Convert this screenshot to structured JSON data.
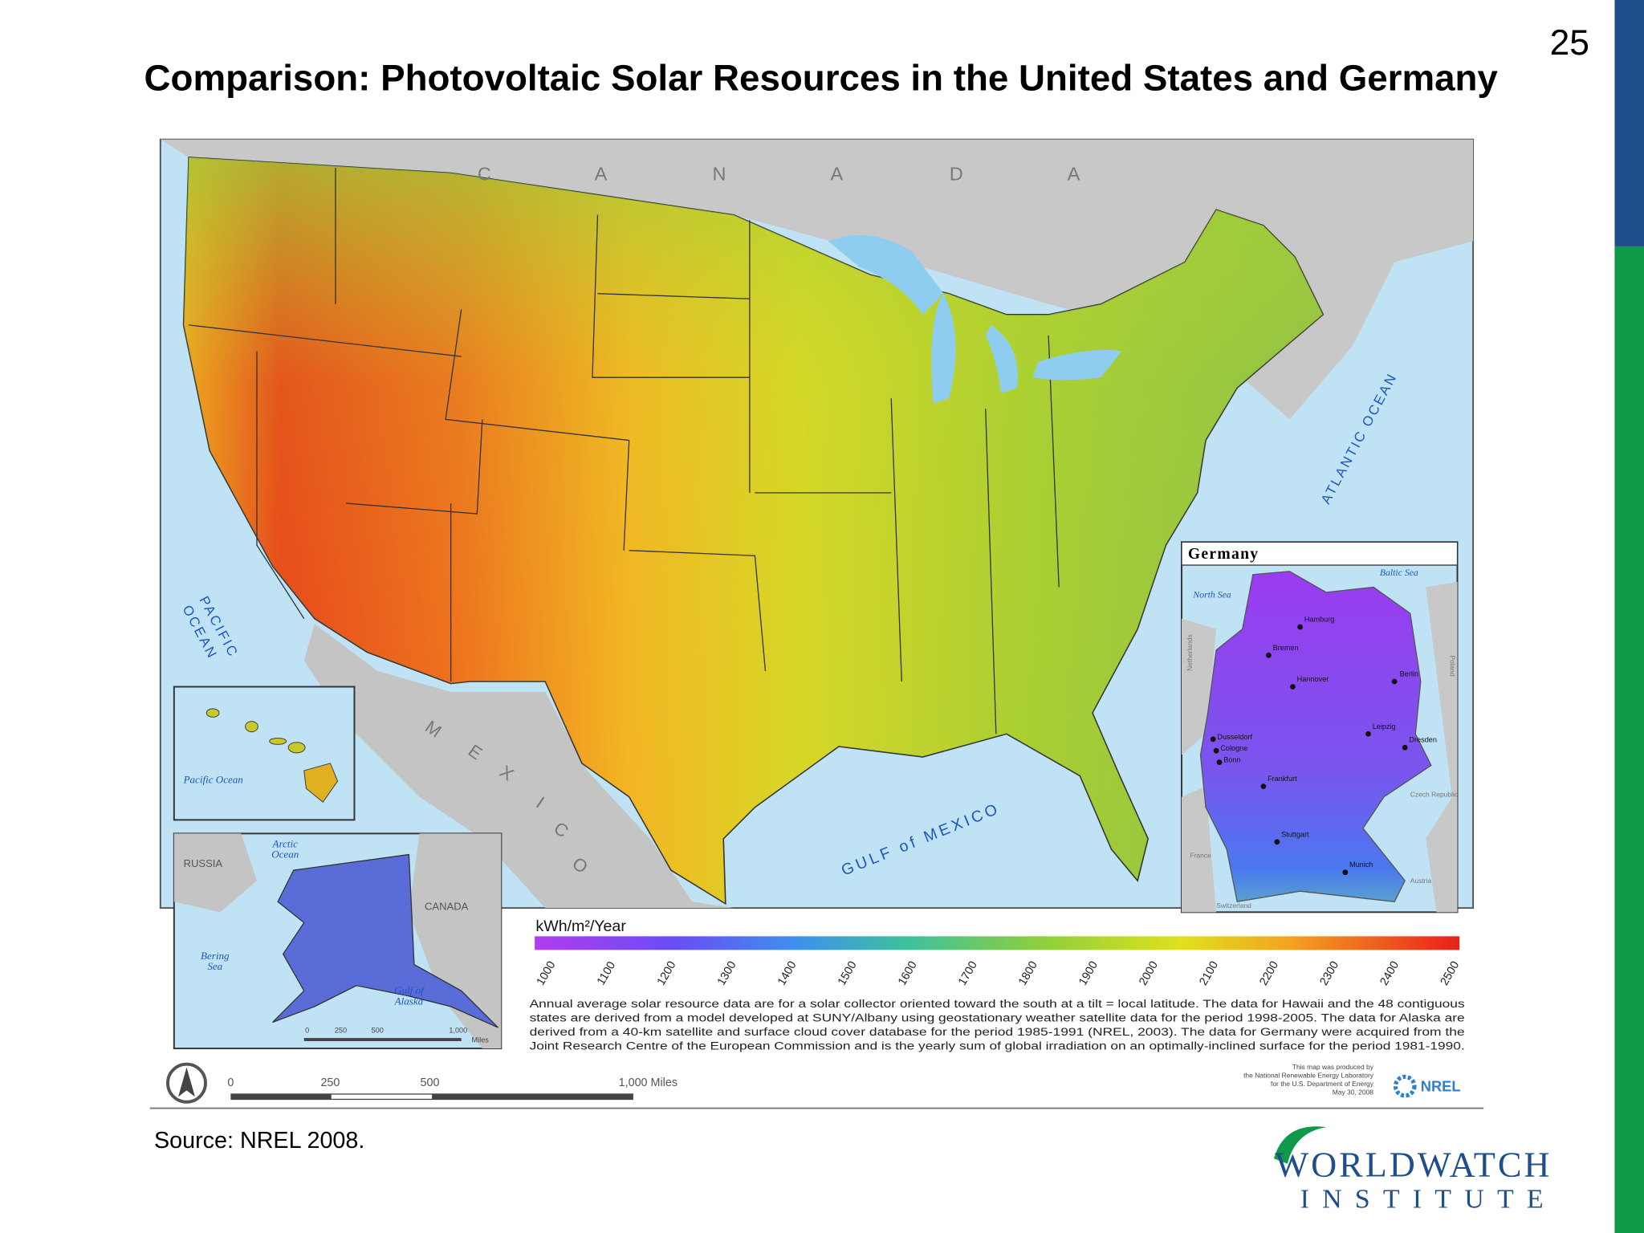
{
  "slide_number": "25",
  "title": "Comparison: Photovoltaic Solar Resources in the United States and Germany",
  "map": {
    "canada_letters": [
      "C",
      "A",
      "N",
      "A",
      "D",
      "A"
    ],
    "mexico_letters": [
      "M",
      "E",
      "X",
      "I",
      "C",
      "O"
    ],
    "gulf_label": "GULF of MEXICO",
    "atlantic_label": "ATLANTIC OCEAN",
    "pacific_label": [
      "PACIFIC",
      "OCEAN"
    ],
    "hawaii": {
      "ocean": "Pacific Ocean"
    },
    "alaska": {
      "russia": "RUSSIA",
      "arctic": [
        "Arctic",
        "Ocean"
      ],
      "canada": "CANADA",
      "bering": [
        "Bering",
        "Sea"
      ],
      "gulf": [
        "Gulf of",
        "Alaska"
      ],
      "scale": [
        "0",
        "250",
        "500",
        "1,000",
        "Miles"
      ]
    },
    "germany": {
      "title": "Germany",
      "north_sea": "North Sea",
      "baltic_sea": "Baltic Sea",
      "cities": [
        "Hamburg",
        "Bremen",
        "Hannover",
        "Berlin",
        "Leipzig",
        "Dresden",
        "Dusseldorf",
        "Cologne",
        "Bonn",
        "Frankfurt",
        "Stuttgart",
        "Munich"
      ],
      "neighbors": [
        "Netherlands",
        "Poland",
        "Czech Republic",
        "France",
        "Austria",
        "Switzerland"
      ]
    },
    "legend": {
      "unit": "kWh/m²/Year",
      "ticks": [
        1000,
        1100,
        1200,
        1300,
        1400,
        1500,
        1600,
        1700,
        1800,
        1900,
        2000,
        2100,
        2200,
        2300,
        2400,
        2500
      ],
      "note": [
        "Annual average solar resource data are for a solar collector oriented toward the south at a tilt = local latitude.  The data for Hawaii and the 48 contiguous",
        "states are derived from a model developed at SUNY/Albany using geostationary weather satellite data for the period 1998-2005. The data for Alaska are",
        "derived from a 40-km satellite and surface cloud cover database for the period 1985-1991 (NREL, 2003).  The data for Germany were acquired from the",
        "Joint Research Centre of the European Commission and is the yearly sum of global irradiation on an optimally-inclined surface for the period 1981-1990."
      ]
    },
    "scale_bar": [
      "0",
      "250",
      "500",
      "1,000  Miles"
    ],
    "credit": [
      "This map was produced by",
      "the National Renewable Energy Laboratory",
      "for the U.S. Department of Energy",
      "May 30, 2008"
    ],
    "nrel": "NREL"
  },
  "source": "Source: NREL 2008.",
  "logo": [
    "WORLDWATCH",
    "INSTITUTE"
  ]
}
